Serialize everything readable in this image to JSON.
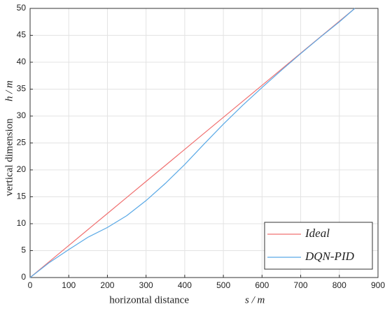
{
  "chart_data": {
    "type": "line",
    "xlabel": "horizontal distance",
    "xlabel_symbol": "s / m",
    "ylabel": "vertical dimension",
    "ylabel_symbol": "h / m",
    "x": [
      0,
      50,
      100,
      150,
      200,
      250,
      300,
      350,
      400,
      450,
      500,
      550,
      600,
      650,
      700,
      750,
      800,
      840
    ],
    "series": [
      {
        "name": "Ideal",
        "color": "#f07070",
        "values": [
          0,
          2.98,
          5.95,
          8.93,
          11.9,
          14.88,
          17.86,
          20.83,
          23.81,
          26.79,
          29.76,
          32.74,
          35.71,
          38.69,
          41.67,
          44.64,
          47.62,
          50
        ]
      },
      {
        "name": "DQN-PID",
        "color": "#5aa9e6",
        "values": [
          0,
          2.8,
          5.2,
          7.5,
          9.3,
          11.5,
          14.3,
          17.5,
          21,
          24.8,
          28.5,
          32,
          35.3,
          38.5,
          41.6,
          44.6,
          47.5,
          50
        ]
      }
    ],
    "xlim": [
      0,
      900
    ],
    "xticks": [
      0,
      100,
      200,
      300,
      400,
      500,
      600,
      700,
      800,
      900
    ],
    "ylim": [
      0,
      50
    ],
    "yticks": [
      0,
      5,
      10,
      15,
      20,
      25,
      30,
      35,
      40,
      45,
      50
    ],
    "grid": true,
    "legend": "lower right"
  }
}
